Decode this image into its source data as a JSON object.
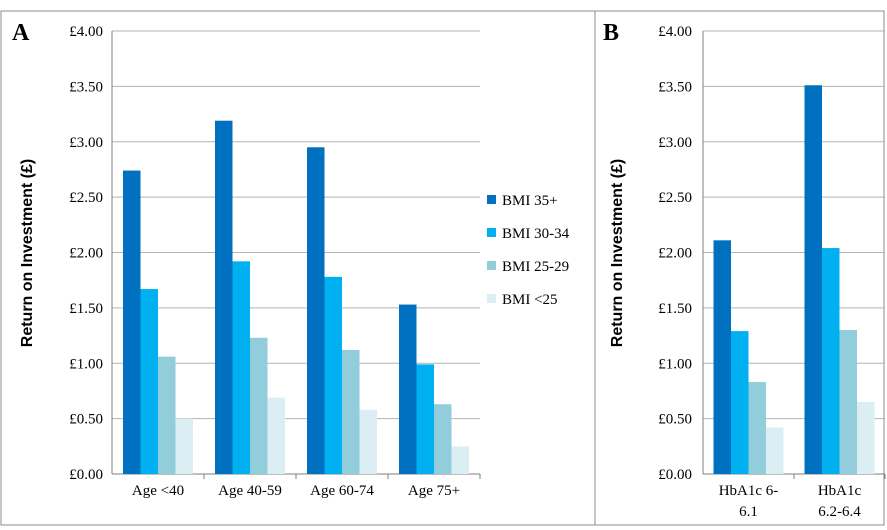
{
  "chart_data": [
    {
      "panel_label": "A",
      "type": "bar",
      "ylabel": "Return on Investment (£)",
      "ylim": [
        0,
        4
      ],
      "yticks": [
        "£0.00",
        "£0.50",
        "£1.00",
        "£1.50",
        "£2.00",
        "£2.50",
        "£3.00",
        "£3.50",
        "£4.00"
      ],
      "categories": [
        [
          "Age <40"
        ],
        [
          "Age 40-59"
        ],
        [
          "Age 60-74"
        ],
        [
          "Age 75+"
        ]
      ],
      "series": [
        {
          "name": "BMI 35+",
          "color": "#0070C0",
          "values": [
            2.74,
            3.19,
            2.95,
            1.53
          ]
        },
        {
          "name": "BMI 30-34",
          "color": "#00B0F0",
          "values": [
            1.67,
            1.92,
            1.78,
            0.99
          ]
        },
        {
          "name": "BMI 25-29",
          "color": "#92CDDC",
          "values": [
            1.06,
            1.23,
            1.12,
            0.63
          ]
        },
        {
          "name": "BMI <25",
          "color": "#DAEEF3",
          "values": [
            0.5,
            0.69,
            0.58,
            0.25
          ]
        }
      ],
      "grid": true,
      "legend_position": "right"
    },
    {
      "panel_label": "B",
      "type": "bar",
      "ylabel": "Return on Investment (£)",
      "ylim": [
        0,
        4
      ],
      "yticks": [
        "£0.00",
        "£0.50",
        "£1.00",
        "£1.50",
        "£2.00",
        "£2.50",
        "£3.00",
        "£3.50",
        "£4.00"
      ],
      "categories": [
        [
          "HbA1c 6-",
          "6.1"
        ],
        [
          "HbA1c",
          "6.2-6.4"
        ]
      ],
      "series": [
        {
          "name": "BMI 35+",
          "color": "#0070C0",
          "values": [
            2.11,
            3.51
          ]
        },
        {
          "name": "BMI 30-34",
          "color": "#00B0F0",
          "values": [
            1.29,
            2.04
          ]
        },
        {
          "name": "BMI 25-29",
          "color": "#92CDDC",
          "values": [
            0.83,
            1.3
          ]
        },
        {
          "name": "BMI <25",
          "color": "#DAEEF3",
          "values": [
            0.42,
            0.65
          ]
        }
      ],
      "grid": true
    }
  ]
}
